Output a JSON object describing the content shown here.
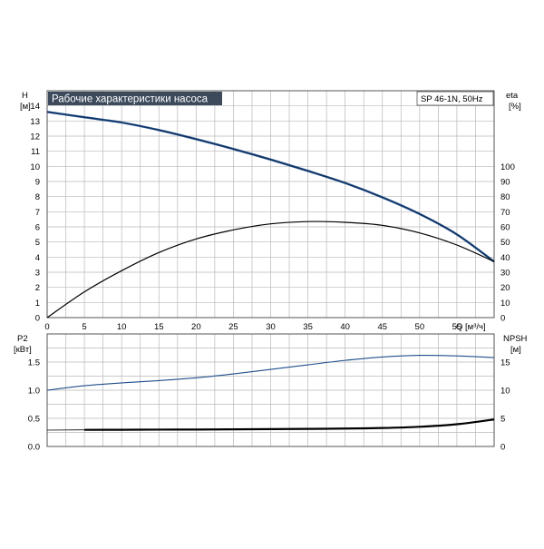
{
  "colors": {
    "background": "#ffffff",
    "grid": "#b8b8b8",
    "frame": "#555555",
    "title_bg": "#3c4a5c",
    "title_text": "#ffffff",
    "curve_blue": "#1f4e8c",
    "curve_black": "#000000"
  },
  "chart_data": [
    {
      "type": "line",
      "title": "Рабочие характеристики насоса",
      "model_label": "SP 46-1N, 50Hz",
      "xlabel": "Q [м³/ч]",
      "ylabel_top": "H",
      "ylabel_bottom": "[м]",
      "y2label_top": "eta",
      "y2label_bottom": "[%]",
      "xlim": [
        0,
        60
      ],
      "ylim": [
        0,
        15
      ],
      "y2lim": [
        0,
        150
      ],
      "x_ticks": [
        0,
        5,
        10,
        15,
        20,
        25,
        30,
        35,
        40,
        45,
        50,
        55
      ],
      "y_ticks": [
        0,
        1,
        2,
        3,
        4,
        5,
        6,
        7,
        8,
        9,
        10,
        11,
        12,
        13,
        14
      ],
      "y2_ticks": [
        0,
        10,
        20,
        30,
        40,
        50,
        60,
        70,
        80,
        90,
        100
      ],
      "grid": true,
      "series": [
        {
          "axis": "left",
          "x": [
            0,
            5,
            10,
            15,
            20,
            25,
            30,
            35,
            40,
            45,
            50,
            55,
            60
          ],
          "values": [
            13.6,
            13.25,
            12.9,
            12.4,
            11.8,
            11.15,
            10.45,
            9.7,
            8.9,
            7.95,
            6.85,
            5.5,
            3.7
          ]
        },
        {
          "axis": "right",
          "x": [
            0,
            5,
            10,
            15,
            20,
            25,
            30,
            35,
            40,
            45,
            50,
            55,
            60
          ],
          "values": [
            0,
            17,
            31,
            43,
            52,
            58,
            62,
            63.5,
            63,
            61,
            56,
            48,
            37
          ]
        }
      ]
    },
    {
      "type": "line",
      "ylabel_top": "P2",
      "ylabel_bottom": "[кВт]",
      "y2label_top": "NPSH",
      "y2label_bottom": "[м]",
      "xlim": [
        0,
        60
      ],
      "ylim": [
        0,
        2.0
      ],
      "y2lim": [
        0,
        20
      ],
      "y_ticks": [
        "0.0",
        "0.5",
        "1.0",
        "1.5"
      ],
      "y_tick_values": [
        0,
        0.5,
        1.0,
        1.5
      ],
      "y2_ticks": [
        0,
        5,
        10,
        15
      ],
      "grid": true,
      "series": [
        {
          "axis": "left",
          "x": [
            0,
            5,
            10,
            15,
            20,
            25,
            30,
            35,
            40,
            45,
            50,
            55,
            60
          ],
          "values": [
            1.0,
            1.08,
            1.13,
            1.17,
            1.22,
            1.29,
            1.37,
            1.45,
            1.53,
            1.59,
            1.62,
            1.61,
            1.58
          ]
        },
        {
          "axis": "right",
          "x": [
            0,
            5,
            10,
            15,
            20,
            25,
            30,
            35,
            40,
            45,
            50,
            55,
            60
          ],
          "values": [
            2.9,
            2.95,
            2.97,
            2.99,
            3.01,
            3.04,
            3.08,
            3.12,
            3.18,
            3.28,
            3.5,
            3.95,
            4.8
          ]
        }
      ]
    }
  ]
}
